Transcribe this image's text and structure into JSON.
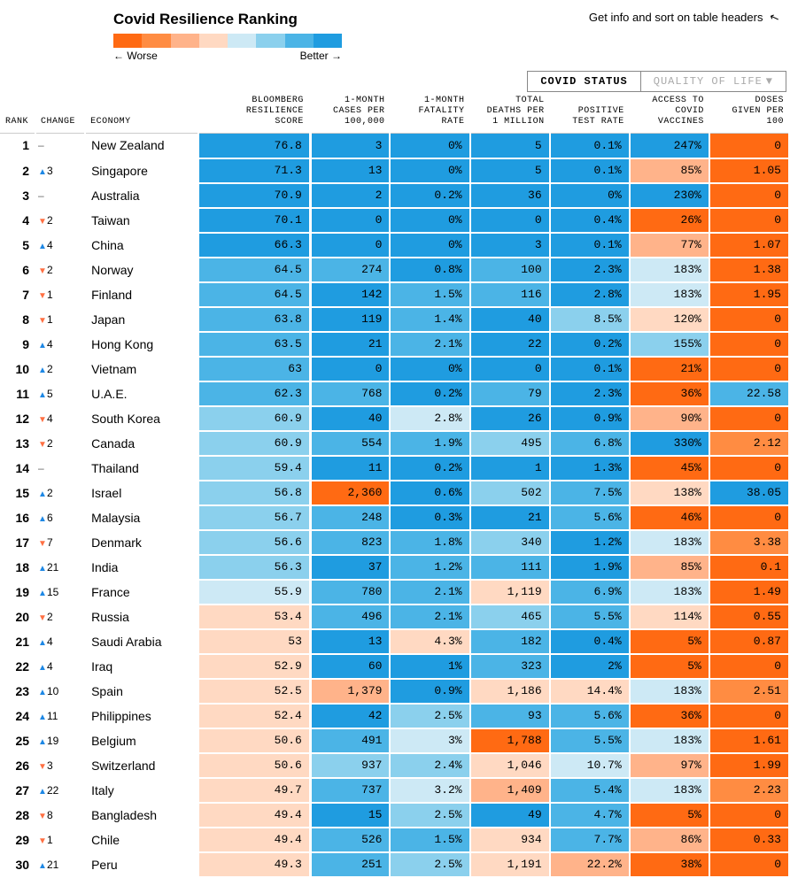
{
  "title": "Covid Resilience Ranking",
  "info_text": "Get info and sort on table headers",
  "gradient_colors": [
    "#ff6a13",
    "#ff8c42",
    "#ffb38a",
    "#ffd9c2",
    "#cde9f5",
    "#8bd0ed",
    "#4bb4e6",
    "#1f9ce0"
  ],
  "worse_label": "← Worse",
  "better_label": "Better →",
  "tabs": {
    "active": "COVID STATUS",
    "inactive": "QUALITY OF LIFE"
  },
  "headers": {
    "rank": "RANK",
    "change": "CHANGE",
    "economy": "ECONOMY",
    "score": "BLOOMBERG\nRESILIENCE\nSCORE",
    "cases": "1-MONTH\nCASES PER\n100,000",
    "fatality": "1-MONTH\nFATALITY\nRATE",
    "deaths": "TOTAL\nDEATHS PER\n1 MILLION",
    "positive": "POSITIVE\nTEST RATE",
    "vaccines": "ACCESS TO\nCOVID\nVACCINES",
    "doses": "DOSES\nGIVEN PER\n100"
  },
  "palette": {
    "o1": "#ff6a13",
    "o2": "#ff8c42",
    "o3": "#ffb38a",
    "o4": "#ffd9c2",
    "b4": "#cde9f5",
    "b3": "#8bd0ed",
    "b2": "#4bb4e6",
    "b1": "#1f9ce0"
  },
  "rows": [
    {
      "rank": 1,
      "dir": "-",
      "delta": "",
      "economy": "New Zealand",
      "score": {
        "v": "76.8",
        "c": "b1"
      },
      "cases": {
        "v": "3",
        "c": "b1"
      },
      "fatality": {
        "v": "0%",
        "c": "b1"
      },
      "deaths": {
        "v": "5",
        "c": "b1"
      },
      "positive": {
        "v": "0.1%",
        "c": "b1"
      },
      "vaccines": {
        "v": "247%",
        "c": "b1"
      },
      "doses": {
        "v": "0",
        "c": "o1"
      }
    },
    {
      "rank": 2,
      "dir": "u",
      "delta": "3",
      "economy": "Singapore",
      "score": {
        "v": "71.3",
        "c": "b1"
      },
      "cases": {
        "v": "13",
        "c": "b1"
      },
      "fatality": {
        "v": "0%",
        "c": "b1"
      },
      "deaths": {
        "v": "5",
        "c": "b1"
      },
      "positive": {
        "v": "0.1%",
        "c": "b1"
      },
      "vaccines": {
        "v": "85%",
        "c": "o3"
      },
      "doses": {
        "v": "1.05",
        "c": "o1"
      }
    },
    {
      "rank": 3,
      "dir": "-",
      "delta": "",
      "economy": "Australia",
      "score": {
        "v": "70.9",
        "c": "b1"
      },
      "cases": {
        "v": "2",
        "c": "b1"
      },
      "fatality": {
        "v": "0.2%",
        "c": "b1"
      },
      "deaths": {
        "v": "36",
        "c": "b1"
      },
      "positive": {
        "v": "0%",
        "c": "b1"
      },
      "vaccines": {
        "v": "230%",
        "c": "b1"
      },
      "doses": {
        "v": "0",
        "c": "o1"
      }
    },
    {
      "rank": 4,
      "dir": "d",
      "delta": "2",
      "economy": "Taiwan",
      "score": {
        "v": "70.1",
        "c": "b1"
      },
      "cases": {
        "v": "0",
        "c": "b1"
      },
      "fatality": {
        "v": "0%",
        "c": "b1"
      },
      "deaths": {
        "v": "0",
        "c": "b1"
      },
      "positive": {
        "v": "0.4%",
        "c": "b1"
      },
      "vaccines": {
        "v": "26%",
        "c": "o1"
      },
      "doses": {
        "v": "0",
        "c": "o1"
      }
    },
    {
      "rank": 5,
      "dir": "u",
      "delta": "4",
      "economy": "China",
      "score": {
        "v": "66.3",
        "c": "b1"
      },
      "cases": {
        "v": "0",
        "c": "b1"
      },
      "fatality": {
        "v": "0%",
        "c": "b1"
      },
      "deaths": {
        "v": "3",
        "c": "b1"
      },
      "positive": {
        "v": "0.1%",
        "c": "b1"
      },
      "vaccines": {
        "v": "77%",
        "c": "o3"
      },
      "doses": {
        "v": "1.07",
        "c": "o1"
      }
    },
    {
      "rank": 6,
      "dir": "d",
      "delta": "2",
      "economy": "Norway",
      "score": {
        "v": "64.5",
        "c": "b2"
      },
      "cases": {
        "v": "274",
        "c": "b2"
      },
      "fatality": {
        "v": "0.8%",
        "c": "b1"
      },
      "deaths": {
        "v": "100",
        "c": "b2"
      },
      "positive": {
        "v": "2.3%",
        "c": "b1"
      },
      "vaccines": {
        "v": "183%",
        "c": "b4"
      },
      "doses": {
        "v": "1.38",
        "c": "o1"
      }
    },
    {
      "rank": 7,
      "dir": "d",
      "delta": "1",
      "economy": "Finland",
      "score": {
        "v": "64.5",
        "c": "b2"
      },
      "cases": {
        "v": "142",
        "c": "b1"
      },
      "fatality": {
        "v": "1.5%",
        "c": "b2"
      },
      "deaths": {
        "v": "116",
        "c": "b2"
      },
      "positive": {
        "v": "2.8%",
        "c": "b1"
      },
      "vaccines": {
        "v": "183%",
        "c": "b4"
      },
      "doses": {
        "v": "1.95",
        "c": "o1"
      }
    },
    {
      "rank": 8,
      "dir": "d",
      "delta": "1",
      "economy": "Japan",
      "score": {
        "v": "63.8",
        "c": "b2"
      },
      "cases": {
        "v": "119",
        "c": "b1"
      },
      "fatality": {
        "v": "1.4%",
        "c": "b2"
      },
      "deaths": {
        "v": "40",
        "c": "b1"
      },
      "positive": {
        "v": "8.5%",
        "c": "b3"
      },
      "vaccines": {
        "v": "120%",
        "c": "o4"
      },
      "doses": {
        "v": "0",
        "c": "o1"
      }
    },
    {
      "rank": 9,
      "dir": "u",
      "delta": "4",
      "economy": "Hong Kong",
      "score": {
        "v": "63.5",
        "c": "b2"
      },
      "cases": {
        "v": "21",
        "c": "b1"
      },
      "fatality": {
        "v": "2.1%",
        "c": "b2"
      },
      "deaths": {
        "v": "22",
        "c": "b1"
      },
      "positive": {
        "v": "0.2%",
        "c": "b1"
      },
      "vaccines": {
        "v": "155%",
        "c": "b3"
      },
      "doses": {
        "v": "0",
        "c": "o1"
      }
    },
    {
      "rank": 10,
      "dir": "u",
      "delta": "2",
      "economy": "Vietnam",
      "score": {
        "v": "63",
        "c": "b2"
      },
      "cases": {
        "v": "0",
        "c": "b1"
      },
      "fatality": {
        "v": "0%",
        "c": "b1"
      },
      "deaths": {
        "v": "0",
        "c": "b1"
      },
      "positive": {
        "v": "0.1%",
        "c": "b1"
      },
      "vaccines": {
        "v": "21%",
        "c": "o1"
      },
      "doses": {
        "v": "0",
        "c": "o1"
      }
    },
    {
      "rank": 11,
      "dir": "u",
      "delta": "5",
      "economy": "U.A.E.",
      "score": {
        "v": "62.3",
        "c": "b2"
      },
      "cases": {
        "v": "768",
        "c": "b2"
      },
      "fatality": {
        "v": "0.2%",
        "c": "b1"
      },
      "deaths": {
        "v": "79",
        "c": "b2"
      },
      "positive": {
        "v": "2.3%",
        "c": "b1"
      },
      "vaccines": {
        "v": "36%",
        "c": "o1"
      },
      "doses": {
        "v": "22.58",
        "c": "b2"
      }
    },
    {
      "rank": 12,
      "dir": "d",
      "delta": "4",
      "economy": "South Korea",
      "score": {
        "v": "60.9",
        "c": "b3"
      },
      "cases": {
        "v": "40",
        "c": "b1"
      },
      "fatality": {
        "v": "2.8%",
        "c": "b4"
      },
      "deaths": {
        "v": "26",
        "c": "b1"
      },
      "positive": {
        "v": "0.9%",
        "c": "b1"
      },
      "vaccines": {
        "v": "90%",
        "c": "o3"
      },
      "doses": {
        "v": "0",
        "c": "o1"
      }
    },
    {
      "rank": 13,
      "dir": "d",
      "delta": "2",
      "economy": "Canada",
      "score": {
        "v": "60.9",
        "c": "b3"
      },
      "cases": {
        "v": "554",
        "c": "b2"
      },
      "fatality": {
        "v": "1.9%",
        "c": "b2"
      },
      "deaths": {
        "v": "495",
        "c": "b3"
      },
      "positive": {
        "v": "6.8%",
        "c": "b2"
      },
      "vaccines": {
        "v": "330%",
        "c": "b1"
      },
      "doses": {
        "v": "2.12",
        "c": "o2"
      }
    },
    {
      "rank": 14,
      "dir": "-",
      "delta": "",
      "economy": "Thailand",
      "score": {
        "v": "59.4",
        "c": "b3"
      },
      "cases": {
        "v": "11",
        "c": "b1"
      },
      "fatality": {
        "v": "0.2%",
        "c": "b1"
      },
      "deaths": {
        "v": "1",
        "c": "b1"
      },
      "positive": {
        "v": "1.3%",
        "c": "b1"
      },
      "vaccines": {
        "v": "45%",
        "c": "o1"
      },
      "doses": {
        "v": "0",
        "c": "o1"
      }
    },
    {
      "rank": 15,
      "dir": "u",
      "delta": "2",
      "economy": "Israel",
      "score": {
        "v": "56.8",
        "c": "b3"
      },
      "cases": {
        "v": "2,360",
        "c": "o1"
      },
      "fatality": {
        "v": "0.6%",
        "c": "b1"
      },
      "deaths": {
        "v": "502",
        "c": "b3"
      },
      "positive": {
        "v": "7.5%",
        "c": "b2"
      },
      "vaccines": {
        "v": "138%",
        "c": "o4"
      },
      "doses": {
        "v": "38.05",
        "c": "b1"
      }
    },
    {
      "rank": 16,
      "dir": "u",
      "delta": "6",
      "economy": "Malaysia",
      "score": {
        "v": "56.7",
        "c": "b3"
      },
      "cases": {
        "v": "248",
        "c": "b2"
      },
      "fatality": {
        "v": "0.3%",
        "c": "b1"
      },
      "deaths": {
        "v": "21",
        "c": "b1"
      },
      "positive": {
        "v": "5.6%",
        "c": "b2"
      },
      "vaccines": {
        "v": "46%",
        "c": "o1"
      },
      "doses": {
        "v": "0",
        "c": "o1"
      }
    },
    {
      "rank": 17,
      "dir": "d",
      "delta": "7",
      "economy": "Denmark",
      "score": {
        "v": "56.6",
        "c": "b3"
      },
      "cases": {
        "v": "823",
        "c": "b2"
      },
      "fatality": {
        "v": "1.8%",
        "c": "b2"
      },
      "deaths": {
        "v": "340",
        "c": "b3"
      },
      "positive": {
        "v": "1.2%",
        "c": "b1"
      },
      "vaccines": {
        "v": "183%",
        "c": "b4"
      },
      "doses": {
        "v": "3.38",
        "c": "o2"
      }
    },
    {
      "rank": 18,
      "dir": "u",
      "delta": "21",
      "economy": "India",
      "score": {
        "v": "56.3",
        "c": "b3"
      },
      "cases": {
        "v": "37",
        "c": "b1"
      },
      "fatality": {
        "v": "1.2%",
        "c": "b2"
      },
      "deaths": {
        "v": "111",
        "c": "b2"
      },
      "positive": {
        "v": "1.9%",
        "c": "b1"
      },
      "vaccines": {
        "v": "85%",
        "c": "o3"
      },
      "doses": {
        "v": "0.1",
        "c": "o1"
      }
    },
    {
      "rank": 19,
      "dir": "u",
      "delta": "15",
      "economy": "France",
      "score": {
        "v": "55.9",
        "c": "b4"
      },
      "cases": {
        "v": "780",
        "c": "b2"
      },
      "fatality": {
        "v": "2.1%",
        "c": "b2"
      },
      "deaths": {
        "v": "1,119",
        "c": "o4"
      },
      "positive": {
        "v": "6.9%",
        "c": "b2"
      },
      "vaccines": {
        "v": "183%",
        "c": "b4"
      },
      "doses": {
        "v": "1.49",
        "c": "o1"
      }
    },
    {
      "rank": 20,
      "dir": "d",
      "delta": "2",
      "economy": "Russia",
      "score": {
        "v": "53.4",
        "c": "o4"
      },
      "cases": {
        "v": "496",
        "c": "b2"
      },
      "fatality": {
        "v": "2.1%",
        "c": "b2"
      },
      "deaths": {
        "v": "465",
        "c": "b3"
      },
      "positive": {
        "v": "5.5%",
        "c": "b2"
      },
      "vaccines": {
        "v": "114%",
        "c": "o4"
      },
      "doses": {
        "v": "0.55",
        "c": "o1"
      }
    },
    {
      "rank": 21,
      "dir": "u",
      "delta": "4",
      "economy": "Saudi Arabia",
      "score": {
        "v": "53",
        "c": "o4"
      },
      "cases": {
        "v": "13",
        "c": "b1"
      },
      "fatality": {
        "v": "4.3%",
        "c": "o4"
      },
      "deaths": {
        "v": "182",
        "c": "b2"
      },
      "positive": {
        "v": "0.4%",
        "c": "b1"
      },
      "vaccines": {
        "v": "5%",
        "c": "o1"
      },
      "doses": {
        "v": "0.87",
        "c": "o1"
      }
    },
    {
      "rank": 22,
      "dir": "u",
      "delta": "4",
      "economy": "Iraq",
      "score": {
        "v": "52.9",
        "c": "o4"
      },
      "cases": {
        "v": "60",
        "c": "b1"
      },
      "fatality": {
        "v": "1%",
        "c": "b1"
      },
      "deaths": {
        "v": "323",
        "c": "b2"
      },
      "positive": {
        "v": "2%",
        "c": "b1"
      },
      "vaccines": {
        "v": "5%",
        "c": "o1"
      },
      "doses": {
        "v": "0",
        "c": "o1"
      }
    },
    {
      "rank": 23,
      "dir": "u",
      "delta": "10",
      "economy": "Spain",
      "score": {
        "v": "52.5",
        "c": "o4"
      },
      "cases": {
        "v": "1,379",
        "c": "o3"
      },
      "fatality": {
        "v": "0.9%",
        "c": "b1"
      },
      "deaths": {
        "v": "1,186",
        "c": "o4"
      },
      "positive": {
        "v": "14.4%",
        "c": "o4"
      },
      "vaccines": {
        "v": "183%",
        "c": "b4"
      },
      "doses": {
        "v": "2.51",
        "c": "o2"
      }
    },
    {
      "rank": 24,
      "dir": "u",
      "delta": "11",
      "economy": "Philippines",
      "score": {
        "v": "52.4",
        "c": "o4"
      },
      "cases": {
        "v": "42",
        "c": "b1"
      },
      "fatality": {
        "v": "2.5%",
        "c": "b3"
      },
      "deaths": {
        "v": "93",
        "c": "b2"
      },
      "positive": {
        "v": "5.6%",
        "c": "b2"
      },
      "vaccines": {
        "v": "36%",
        "c": "o1"
      },
      "doses": {
        "v": "0",
        "c": "o1"
      }
    },
    {
      "rank": 25,
      "dir": "u",
      "delta": "19",
      "economy": "Belgium",
      "score": {
        "v": "50.6",
        "c": "o4"
      },
      "cases": {
        "v": "491",
        "c": "b2"
      },
      "fatality": {
        "v": "3%",
        "c": "b4"
      },
      "deaths": {
        "v": "1,788",
        "c": "o1"
      },
      "positive": {
        "v": "5.5%",
        "c": "b2"
      },
      "vaccines": {
        "v": "183%",
        "c": "b4"
      },
      "doses": {
        "v": "1.61",
        "c": "o1"
      }
    },
    {
      "rank": 26,
      "dir": "d",
      "delta": "3",
      "economy": "Switzerland",
      "score": {
        "v": "50.6",
        "c": "o4"
      },
      "cases": {
        "v": "937",
        "c": "b3"
      },
      "fatality": {
        "v": "2.4%",
        "c": "b3"
      },
      "deaths": {
        "v": "1,046",
        "c": "o4"
      },
      "positive": {
        "v": "10.7%",
        "c": "b4"
      },
      "vaccines": {
        "v": "97%",
        "c": "o3"
      },
      "doses": {
        "v": "1.99",
        "c": "o1"
      }
    },
    {
      "rank": 27,
      "dir": "u",
      "delta": "22",
      "economy": "Italy",
      "score": {
        "v": "49.7",
        "c": "o4"
      },
      "cases": {
        "v": "737",
        "c": "b2"
      },
      "fatality": {
        "v": "3.2%",
        "c": "b4"
      },
      "deaths": {
        "v": "1,409",
        "c": "o3"
      },
      "positive": {
        "v": "5.4%",
        "c": "b2"
      },
      "vaccines": {
        "v": "183%",
        "c": "b4"
      },
      "doses": {
        "v": "2.23",
        "c": "o2"
      }
    },
    {
      "rank": 28,
      "dir": "d",
      "delta": "8",
      "economy": "Bangladesh",
      "score": {
        "v": "49.4",
        "c": "o4"
      },
      "cases": {
        "v": "15",
        "c": "b1"
      },
      "fatality": {
        "v": "2.5%",
        "c": "b3"
      },
      "deaths": {
        "v": "49",
        "c": "b1"
      },
      "positive": {
        "v": "4.7%",
        "c": "b2"
      },
      "vaccines": {
        "v": "5%",
        "c": "o1"
      },
      "doses": {
        "v": "0",
        "c": "o1"
      }
    },
    {
      "rank": 29,
      "dir": "d",
      "delta": "1",
      "economy": "Chile",
      "score": {
        "v": "49.4",
        "c": "o4"
      },
      "cases": {
        "v": "526",
        "c": "b2"
      },
      "fatality": {
        "v": "1.5%",
        "c": "b2"
      },
      "deaths": {
        "v": "934",
        "c": "o4"
      },
      "positive": {
        "v": "7.7%",
        "c": "b2"
      },
      "vaccines": {
        "v": "86%",
        "c": "o3"
      },
      "doses": {
        "v": "0.33",
        "c": "o1"
      }
    },
    {
      "rank": 30,
      "dir": "u",
      "delta": "21",
      "economy": "Peru",
      "score": {
        "v": "49.3",
        "c": "o4"
      },
      "cases": {
        "v": "251",
        "c": "b2"
      },
      "fatality": {
        "v": "2.5%",
        "c": "b3"
      },
      "deaths": {
        "v": "1,191",
        "c": "o4"
      },
      "positive": {
        "v": "22.2%",
        "c": "o3"
      },
      "vaccines": {
        "v": "38%",
        "c": "o1"
      },
      "doses": {
        "v": "0",
        "c": "o1"
      }
    }
  ]
}
